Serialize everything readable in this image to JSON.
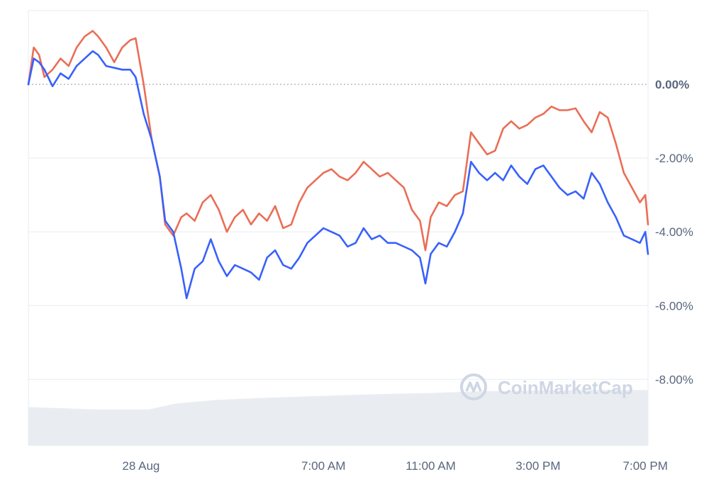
{
  "chart_data": {
    "type": "line",
    "title": "",
    "xlabel": "",
    "ylabel": "",
    "ylim": [
      -9.8,
      2.0
    ],
    "y_ticks": [
      {
        "value": 0,
        "label": "0.00%"
      },
      {
        "value": -2,
        "label": "-2.00%"
      },
      {
        "value": -4,
        "label": "-4.00%"
      },
      {
        "value": -6,
        "label": "-6.00%"
      },
      {
        "value": -8,
        "label": "-8.00%"
      }
    ],
    "x_ticks": [
      {
        "t": 4.2,
        "label": "28 Aug"
      },
      {
        "t": 11.0,
        "label": "7:00 AM"
      },
      {
        "t": 15.0,
        "label": "11:00 AM"
      },
      {
        "t": 19.0,
        "label": "3:00 PM"
      },
      {
        "t": 23.0,
        "label": "7:00 PM"
      }
    ],
    "zero_line": "dotted",
    "grid": true,
    "colors": {
      "series_1": "#ea6e56",
      "series_2": "#3861fb",
      "grid": "#eff2f5",
      "volume": "#e9edf1"
    },
    "series": [
      {
        "values": [
          [
            0.0,
            0.0
          ],
          [
            0.2,
            1.0
          ],
          [
            0.4,
            0.8
          ],
          [
            0.6,
            0.2
          ],
          [
            0.9,
            0.4
          ],
          [
            1.2,
            0.7
          ],
          [
            1.5,
            0.5
          ],
          [
            1.8,
            1.0
          ],
          [
            2.1,
            1.3
          ],
          [
            2.4,
            1.45
          ],
          [
            2.6,
            1.3
          ],
          [
            2.9,
            1.0
          ],
          [
            3.2,
            0.6
          ],
          [
            3.5,
            1.0
          ],
          [
            3.8,
            1.2
          ],
          [
            4.0,
            1.25
          ],
          [
            4.3,
            0.0
          ],
          [
            4.6,
            -1.5
          ],
          [
            4.9,
            -2.5
          ],
          [
            5.1,
            -3.8
          ],
          [
            5.4,
            -4.1
          ],
          [
            5.7,
            -3.6
          ],
          [
            5.9,
            -3.5
          ],
          [
            6.2,
            -3.7
          ],
          [
            6.5,
            -3.2
          ],
          [
            6.8,
            -3.0
          ],
          [
            7.1,
            -3.4
          ],
          [
            7.4,
            -4.0
          ],
          [
            7.7,
            -3.6
          ],
          [
            8.0,
            -3.4
          ],
          [
            8.3,
            -3.8
          ],
          [
            8.6,
            -3.5
          ],
          [
            8.9,
            -3.7
          ],
          [
            9.2,
            -3.3
          ],
          [
            9.5,
            -3.9
          ],
          [
            9.8,
            -3.8
          ],
          [
            10.1,
            -3.2
          ],
          [
            10.4,
            -2.8
          ],
          [
            10.7,
            -2.6
          ],
          [
            11.0,
            -2.4
          ],
          [
            11.3,
            -2.3
          ],
          [
            11.6,
            -2.5
          ],
          [
            11.9,
            -2.6
          ],
          [
            12.2,
            -2.4
          ],
          [
            12.5,
            -2.1
          ],
          [
            12.8,
            -2.3
          ],
          [
            13.1,
            -2.5
          ],
          [
            13.4,
            -2.4
          ],
          [
            13.7,
            -2.6
          ],
          [
            14.0,
            -2.8
          ],
          [
            14.3,
            -3.4
          ],
          [
            14.6,
            -3.7
          ],
          [
            14.8,
            -4.5
          ],
          [
            15.0,
            -3.6
          ],
          [
            15.3,
            -3.2
          ],
          [
            15.6,
            -3.3
          ],
          [
            15.9,
            -3.0
          ],
          [
            16.2,
            -2.9
          ],
          [
            16.5,
            -1.3
          ],
          [
            16.8,
            -1.6
          ],
          [
            17.1,
            -1.9
          ],
          [
            17.4,
            -1.8
          ],
          [
            17.7,
            -1.2
          ],
          [
            18.0,
            -1.0
          ],
          [
            18.3,
            -1.2
          ],
          [
            18.6,
            -1.1
          ],
          [
            18.9,
            -0.9
          ],
          [
            19.2,
            -0.8
          ],
          [
            19.5,
            -0.6
          ],
          [
            19.8,
            -0.7
          ],
          [
            20.1,
            -0.7
          ],
          [
            20.4,
            -0.65
          ],
          [
            20.7,
            -1.0
          ],
          [
            21.0,
            -1.3
          ],
          [
            21.3,
            -0.75
          ],
          [
            21.6,
            -0.9
          ],
          [
            21.9,
            -1.6
          ],
          [
            22.2,
            -2.4
          ],
          [
            22.5,
            -2.8
          ],
          [
            22.8,
            -3.2
          ],
          [
            23.0,
            -3.0
          ],
          [
            23.1,
            -3.8
          ]
        ]
      },
      {
        "values": [
          [
            0.0,
            0.0
          ],
          [
            0.2,
            0.7
          ],
          [
            0.4,
            0.6
          ],
          [
            0.6,
            0.4
          ],
          [
            0.9,
            -0.05
          ],
          [
            1.2,
            0.3
          ],
          [
            1.5,
            0.15
          ],
          [
            1.8,
            0.5
          ],
          [
            2.1,
            0.7
          ],
          [
            2.4,
            0.9
          ],
          [
            2.6,
            0.8
          ],
          [
            2.9,
            0.5
          ],
          [
            3.2,
            0.45
          ],
          [
            3.5,
            0.4
          ],
          [
            3.8,
            0.4
          ],
          [
            4.0,
            0.2
          ],
          [
            4.3,
            -0.8
          ],
          [
            4.6,
            -1.5
          ],
          [
            4.9,
            -2.5
          ],
          [
            5.1,
            -3.7
          ],
          [
            5.4,
            -4.0
          ],
          [
            5.7,
            -5.0
          ],
          [
            5.9,
            -5.8
          ],
          [
            6.2,
            -5.0
          ],
          [
            6.5,
            -4.8
          ],
          [
            6.8,
            -4.2
          ],
          [
            7.1,
            -4.8
          ],
          [
            7.4,
            -5.2
          ],
          [
            7.7,
            -4.9
          ],
          [
            8.0,
            -5.0
          ],
          [
            8.3,
            -5.1
          ],
          [
            8.6,
            -5.3
          ],
          [
            8.9,
            -4.7
          ],
          [
            9.2,
            -4.5
          ],
          [
            9.5,
            -4.9
          ],
          [
            9.8,
            -5.0
          ],
          [
            10.1,
            -4.7
          ],
          [
            10.4,
            -4.3
          ],
          [
            10.7,
            -4.1
          ],
          [
            11.0,
            -3.9
          ],
          [
            11.3,
            -4.0
          ],
          [
            11.6,
            -4.1
          ],
          [
            11.9,
            -4.4
          ],
          [
            12.2,
            -4.3
          ],
          [
            12.5,
            -3.9
          ],
          [
            12.8,
            -4.2
          ],
          [
            13.1,
            -4.1
          ],
          [
            13.4,
            -4.3
          ],
          [
            13.7,
            -4.3
          ],
          [
            14.0,
            -4.4
          ],
          [
            14.3,
            -4.5
          ],
          [
            14.6,
            -4.7
          ],
          [
            14.8,
            -5.4
          ],
          [
            15.0,
            -4.6
          ],
          [
            15.3,
            -4.3
          ],
          [
            15.6,
            -4.4
          ],
          [
            15.9,
            -4.0
          ],
          [
            16.2,
            -3.5
          ],
          [
            16.5,
            -2.1
          ],
          [
            16.8,
            -2.4
          ],
          [
            17.1,
            -2.6
          ],
          [
            17.4,
            -2.4
          ],
          [
            17.7,
            -2.6
          ],
          [
            18.0,
            -2.2
          ],
          [
            18.3,
            -2.5
          ],
          [
            18.6,
            -2.7
          ],
          [
            18.9,
            -2.3
          ],
          [
            19.2,
            -2.2
          ],
          [
            19.5,
            -2.5
          ],
          [
            19.8,
            -2.8
          ],
          [
            20.1,
            -3.0
          ],
          [
            20.4,
            -2.9
          ],
          [
            20.7,
            -3.1
          ],
          [
            21.0,
            -2.4
          ],
          [
            21.3,
            -2.7
          ],
          [
            21.6,
            -3.2
          ],
          [
            21.9,
            -3.6
          ],
          [
            22.2,
            -4.1
          ],
          [
            22.5,
            -4.2
          ],
          [
            22.8,
            -4.3
          ],
          [
            23.0,
            -4.0
          ],
          [
            23.1,
            -4.6
          ]
        ]
      }
    ],
    "volume_levels": [
      [
        0.0,
        0.66
      ],
      [
        2.5,
        0.62
      ],
      [
        4.5,
        0.62
      ],
      [
        5.5,
        0.72
      ],
      [
        7.0,
        0.78
      ],
      [
        9.0,
        0.82
      ],
      [
        11.0,
        0.85
      ],
      [
        13.0,
        0.88
      ],
      [
        15.0,
        0.9
      ],
      [
        17.0,
        0.93
      ],
      [
        19.0,
        0.94
      ],
      [
        21.0,
        0.95
      ],
      [
        23.1,
        0.95
      ]
    ],
    "watermark": "CoinMarketCap"
  }
}
